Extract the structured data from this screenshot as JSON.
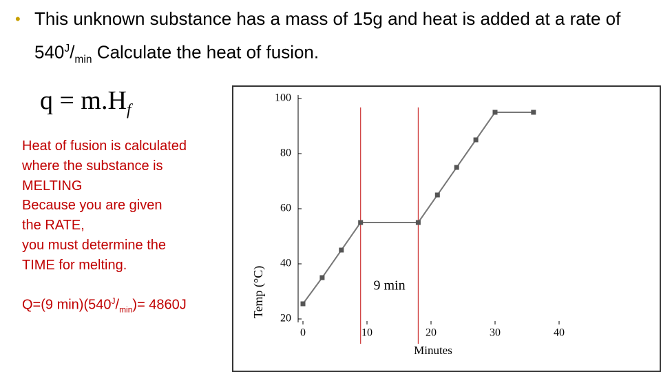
{
  "slide": {
    "title": {
      "before": "This unknown substance has a mass of 15g and heat is added at a rate of 540",
      "sup": "J",
      "slash": "/",
      "sub": "min",
      "after": " Calculate the heat of fusion."
    },
    "formula": {
      "main": "q = m.H",
      "sub": "f"
    },
    "explanation": [
      "Heat of fusion is calculated",
      "where the substance is",
      "MELTING",
      "Because you are given",
      "the RATE,",
      "you must determine the",
      "TIME for melting."
    ],
    "answer": {
      "before": "Q=(9 min)(540",
      "sup": "J",
      "slash": "/",
      "sub": "min",
      "after": ")= 4860J"
    }
  },
  "chart_data": {
    "type": "line",
    "x_label": "Minutes",
    "y_label": "Temp (°C)",
    "x": [
      0,
      3,
      6,
      9,
      18,
      21,
      24,
      27,
      30,
      36
    ],
    "series": [
      {
        "name": "Temperature",
        "color": "#777777",
        "values": [
          25.5,
          35,
          45,
          55,
          55,
          65,
          75,
          85,
          95,
          95
        ]
      }
    ],
    "xlim": [
      0,
      40
    ],
    "xticks": [
      0,
      10,
      20,
      30,
      40
    ],
    "ylim": [
      20,
      100
    ],
    "yticks": [
      20,
      40,
      60,
      80,
      100
    ],
    "vlines": [
      9,
      18
    ],
    "vline_color": "#cc3333",
    "annotation": "9 min"
  }
}
